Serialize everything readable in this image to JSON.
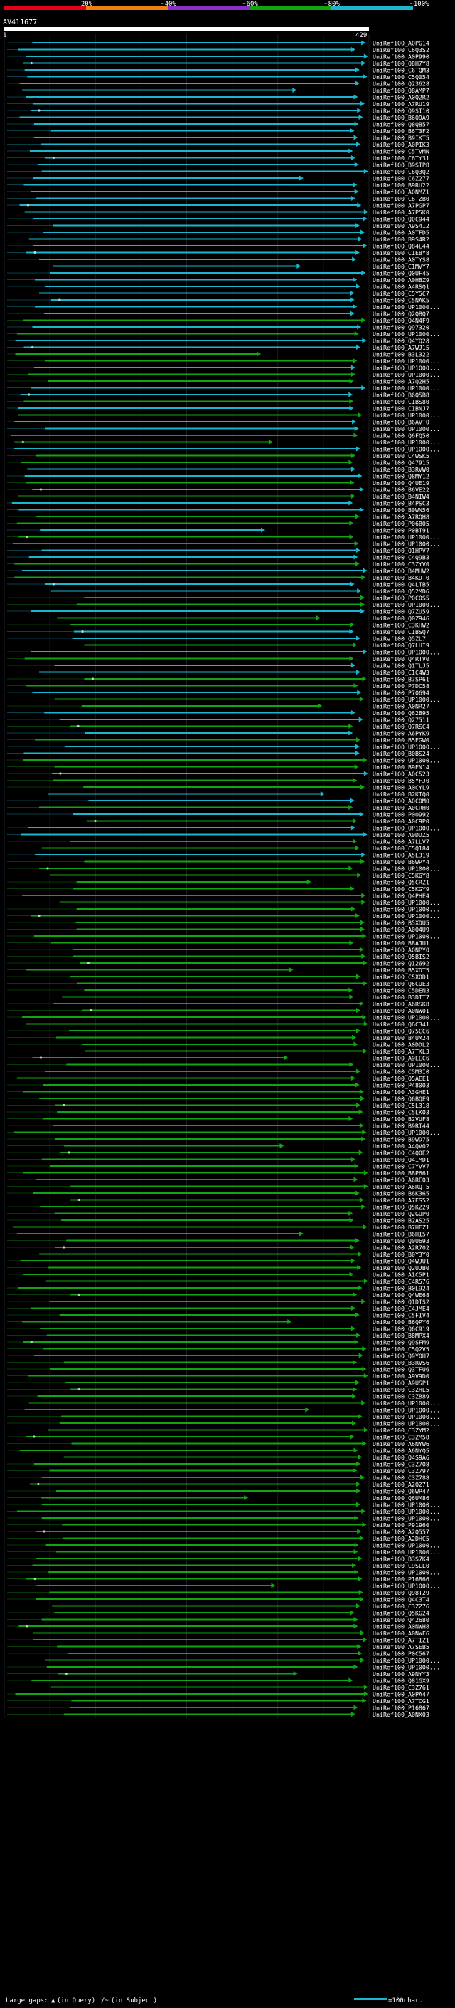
{
  "chart_data": {
    "type": "alignment-overview",
    "title": "AV411677",
    "query_start": "1",
    "query_end": "429",
    "query_length": 429,
    "scale_bar_colors": [
      "#e0001a",
      "#f07f10",
      "#8b2fc9",
      "#11a611",
      "#19b7ce"
    ],
    "identity_bins": [
      {
        "label": "20%",
        "color": "#f07f10"
      },
      {
        "label": "~40%",
        "color": "#8b2fc9"
      },
      {
        "label": "~60%",
        "color": "#11a611"
      },
      {
        "label": "~80%",
        "color": "#19b7ce"
      },
      {
        "label": "~100%",
        "color": "#19b7ce"
      }
    ],
    "colors": {
      "background": "#000000",
      "cyan": "#19b7ce",
      "green": "#11a611",
      "gap": "#cccccc",
      "text": "#ffffff",
      "grid": "#1c1c2a",
      "query_bar": "#ffffff"
    },
    "legend": {
      "gaps_label": "Large gaps:",
      "query_gap_text": "(in Query)",
      "subject_gap_text": "(in Subject)",
      "scale_text": "=100char."
    },
    "hits": [
      "UniRef100_A0PG14",
      "UniRef100_C6Q3S2",
      "UniRef100_A0P990",
      "UniRef100_Q8H7Y8",
      "UniRef100_C6TQM3",
      "UniRef100_C5Q054",
      "UniRef100_Q23628",
      "UniRef100_Q8AMP7",
      "UniRef100_A0Q2R2",
      "UniRef100_A7RU19",
      "UniRef100_Q9SI10",
      "UniRef100_B6Q9A9",
      "UniRef100_Q8QB57",
      "UniRef100_B6T3F2",
      "UniRef100_B9IKT5",
      "UniRef100_A0PIK3",
      "UniRef100_C5TVMN",
      "UniRef100_C6TY31",
      "UniRef100_B9STP8",
      "UniRef100_C6Q3Q2",
      "UniRef100_C6Z277",
      "UniRef100_B9RU22",
      "UniRef100_A0NMZ1",
      "UniRef100_C6TZB0",
      "UniRef100_A7PGP7",
      "UniRef100_A7P5K0",
      "UniRef100_Q0C944",
      "UniRef100_A9S412",
      "UniRef100_A0TFD5",
      "UniRef100_B9S4R2",
      "UniRef100_Q84L44",
      "UniRef100_C1EBY8",
      "UniRef100_A0TYS8",
      "UniRef100_C1MVY7",
      "UniRef100_Q0UF45",
      "UniRef100_A0HBZ9",
      "UniRef100_A4RSQ1",
      "UniRef100_C5Y5C7",
      "UniRef100_C5NAK5",
      "UniRef100_UP1000...",
      "UniRef100_Q2QBQ7",
      "UniRef100_Q4N4F9",
      "UniRef100_Q97320",
      "UniRef100_UP1000...",
      "UniRef100_Q4YQ28",
      "UniRef100_A7WJ15",
      "UniRef100_B3L322",
      "UniRef100_UP1000...",
      "UniRef100_UP1000...",
      "UniRef100_UP1000...",
      "UniRef100_A7Q2H5",
      "UniRef100_UP1000...",
      "UniRef100_B6Q5B8",
      "UniRef100_C1BS80",
      "UniRef100_C1BNJ7",
      "UniRef100_UP1000...",
      "UniRef100_B6AVT0",
      "UniRef100_UP1000...",
      "UniRef100_Q6FQ50",
      "UniRef100_UP1000...",
      "UniRef100_UP1000...",
      "UniRef100_C4WSK5",
      "UniRef100_Q47915",
      "UniRef100_B3RVW0",
      "UniRef100_Q8MY12",
      "UniRef100_Q4UE19",
      "UniRef100_B6VE22",
      "UniRef100_B4NIW4",
      "UniRef100_B4PSC3",
      "UniRef100_B0WN56",
      "UniRef100_A7RQH8",
      "UniRef100_P06B05",
      "UniRef100_P0BT91",
      "UniRef100_UP1000...",
      "UniRef100_UP1000...",
      "UniRef100_Q1HPV7",
      "UniRef100_C4Q9B3",
      "UniRef100_C3ZYV0",
      "UniRef100_B4MHW2",
      "UniRef100_B4KDT0",
      "UniRef100_Q4LTB5",
      "UniRef100_Q52MD6",
      "UniRef100_P0C0S5",
      "UniRef100_UP1000...",
      "UniRef100_Q7ZU59",
      "UniRef100_Q0Z946",
      "UniRef100_C3KHW2",
      "UniRef100_C1BSQ7",
      "UniRef100_Q5ZL7",
      "UniRef100_Q7LUI9",
      "UniRef100_UP1000...",
      "UniRef100_Q4RTV0",
      "UniRef100_Q1TLJ5",
      "UniRef100_C1C4W3",
      "UniRef100_B7SP61",
      "UniRef100_P7DC58",
      "UniRef100_P70694",
      "UniRef100_UP1000...",
      "UniRef100_A0NR27",
      "UniRef100_Q62895",
      "UniRef100_Q27511",
      "UniRef100_Q7RSC4",
      "UniRef100_A6PYK9",
      "UniRef100_B5EGW0",
      "UniRef100_UP1000...",
      "UniRef100_B0BS24",
      "UniRef100_UP1000...",
      "UniRef100_B9EN14",
      "UniRef100_A0C523",
      "UniRef100_B5YFJ0",
      "UniRef100_A0CYL9",
      "UniRef100_B2KIQ0",
      "UniRef100_A0C0M0",
      "UniRef100_A0CRH0",
      "UniRef100_P00992",
      "UniRef100_A0C9P0",
      "UniRef100_UP1000...",
      "UniRef100_A0DDZ5",
      "UniRef100_A7LLV7",
      "UniRef100_C5Q184",
      "UniRef100_A5L319",
      "UniRef100_B6WPY4",
      "UniRef100_UP1000...",
      "UniRef100_C5KGY8",
      "UniRef100_Q5CRZ1",
      "UniRef100_C5KGY9",
      "UniRef100_Q4PHE4",
      "UniRef100_UP1000...",
      "UniRef100_UP1000...",
      "UniRef100_UP1000...",
      "UniRef100_B5XDU5",
      "UniRef100_A0Q4U9",
      "UniRef100_UP1000...",
      "UniRef100_B8AJU1",
      "UniRef100_A0NPY0",
      "UniRef100_Q5BIS2",
      "UniRef100_Q12692",
      "UniRef100_B5XDT5",
      "UniRef100_C5X0D1",
      "UniRef100_Q6CUE3",
      "UniRef100_C5DEN3",
      "UniRef100_B3DTT7",
      "UniRef100_A6RSK8",
      "UniRef100_A0NW01",
      "UniRef100_UP1000...",
      "UniRef100_Q6C341",
      "UniRef100_Q75CC6",
      "UniRef100_B4UM24",
      "UniRef100_A0DDL2",
      "UniRef100_A7TKL3",
      "UniRef100_A9EEC6",
      "UniRef100_UP1000...",
      "UniRef100_C5M3I0",
      "UniRef100_Q5AEE1",
      "UniRef100_P48003",
      "UniRef100_A3GHE1",
      "UniRef100_Q6BQE9",
      "UniRef100_C5L318",
      "UniRef100_C5LK03",
      "UniRef100_B2VUF8",
      "UniRef100_B9RI44",
      "UniRef100_UP1000...",
      "UniRef100_B9WD75",
      "UniRef100_A4QV02",
      "UniRef100_C4Q0E2",
      "UniRef100_Q4IMD1",
      "UniRef100_C7YVV7",
      "UniRef100_B8P661",
      "UniRef100_A6RE03",
      "UniRef100_A6RQT5",
      "UniRef100_B6K365",
      "UniRef100_A7ES52",
      "UniRef100_Q5KZ29",
      "UniRef100_Q2GUP0",
      "UniRef100_B2AS25",
      "UniRef100_B7HEZ1",
      "UniRef100_B6HI57",
      "UniRef100_Q0U693",
      "UniRef100_A2R702",
      "UniRef100_B0Y3Y0",
      "UniRef100_Q4WJU1",
      "UniRef100_Q2UJB0",
      "UniRef100_A1C5P1",
      "UniRef100_C4R576",
      "UniRef100_B0L924",
      "UniRef100_Q4WE68",
      "UniRef100_Q1DTS2",
      "UniRef100_C4JME4",
      "UniRef100_C5FIV4",
      "UniRef100_B6QPY6",
      "UniRef100_Q6C919",
      "UniRef100_B8MPX4",
      "UniRef100_Q9SFM9",
      "UniRef100_C5Q2V5",
      "UniRef100_Q9Y0H7",
      "UniRef100_B3RVS6",
      "UniRef100_Q3TFU6",
      "UniRef100_A9V9D0",
      "UniRef100_A9USP1",
      "UniRef100_C3ZHL5",
      "UniRef100_C3Z889",
      "UniRef100_UP1000...",
      "UniRef100_UP1000...",
      "UniRef100_UP1000...",
      "UniRef100_UP1000...",
      "UniRef100_C3ZYM2",
      "UniRef100_C3ZM58",
      "UniRef100_A6NYW6",
      "UniRef100_A6NYQ5",
      "UniRef100_Q4S9A6",
      "UniRef100_C3Z708",
      "UniRef100_C3Z797",
      "UniRef100_C3Z788",
      "UniRef100_A2Q271",
      "UniRef100_Q6WP47",
      "UniRef100_Q6UM86",
      "UniRef100_UP1000...",
      "UniRef100_UP1000...",
      "UniRef100_UP1000...",
      "UniRef100_P91960",
      "UniRef100_A2Q557",
      "UniRef100_A2DHC5",
      "UniRef100_UP1000...",
      "UniRef100_UP1000...",
      "UniRef100_B3S7K4",
      "UniRef100_C9SLL0",
      "UniRef100_UP1000...",
      "UniRef100_P16866",
      "UniRef100_UP1000...",
      "UniRef100_Q98T29",
      "UniRef100_Q4C3T4",
      "UniRef100_C3ZZ76",
      "UniRef100_Q5KG24",
      "UniRef100_Q42680",
      "UniRef100_A0NWH8",
      "UniRef100_A0NWF6",
      "UniRef100_A7TIZ1",
      "UniRef100_A7SEB5",
      "UniRef100_P0C567",
      "UniRef100_UP1000...",
      "UniRef100_UP1000...",
      "UniRef100_A9NYY3",
      "UniRef100_Q81GX9",
      "UniRef100_C3Z761",
      "UniRef100_A0PA47",
      "UniRef100_A7TCG1",
      "UniRef100_P16867",
      "UniRef100_A0NX03"
    ]
  }
}
